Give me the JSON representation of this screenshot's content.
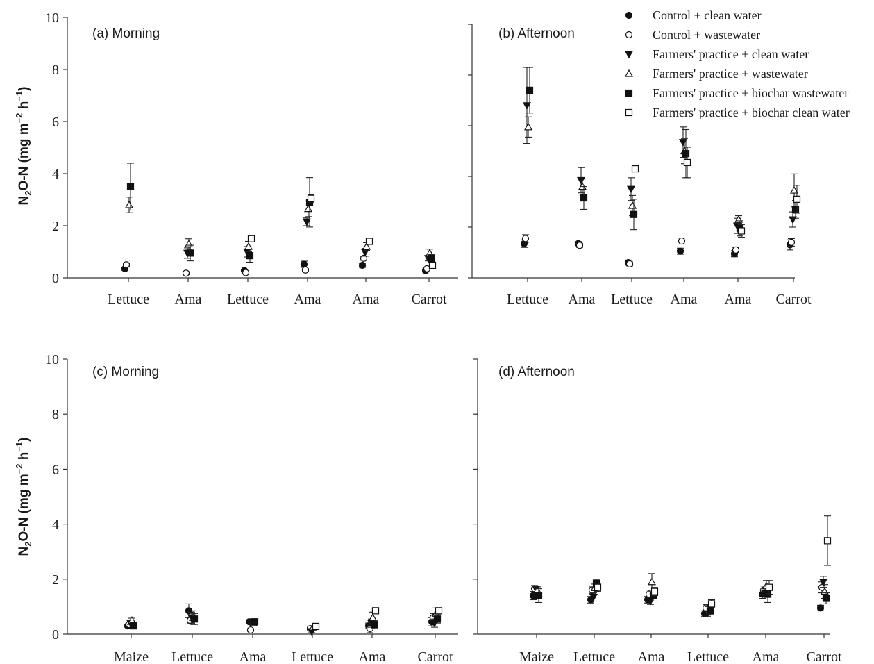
{
  "chart_data": [
    {
      "type": "scatter",
      "title": "(a) Morning",
      "categories": [
        "Lettuce",
        "Ama",
        "Lettuce",
        "Ama",
        "Ama",
        "Carrot"
      ],
      "ylabel": "N2O-N (mg m-2 h-1)",
      "ylim": [
        0,
        10
      ],
      "yticks": [
        0,
        2,
        4,
        6,
        8,
        10
      ],
      "series": [
        {
          "name": "Control + clean water",
          "values": [
            0.35,
            null,
            0.28,
            0.52,
            0.48,
            0.28
          ],
          "err": [
            0.06,
            null,
            0.05,
            0.12,
            0.08,
            0.06
          ]
        },
        {
          "name": "Control + wastewater",
          "values": [
            0.5,
            0.18,
            0.2,
            0.3,
            0.75,
            0.35
          ],
          "err": [
            0.05,
            0.06,
            0.05,
            0.05,
            0.08,
            0.06
          ]
        },
        {
          "name": "Farmers' practice + clean water",
          "values": [
            null,
            0.95,
            1.0,
            2.15,
            0.98,
            0.75
          ],
          "err": [
            null,
            0.2,
            0.2,
            0.15,
            0.15,
            0.1
          ]
        },
        {
          "name": "Farmers' practice + wastewater",
          "values": [
            2.8,
            1.3,
            1.2,
            2.65,
            1.2,
            0.95
          ],
          "err": [
            0.3,
            0.2,
            0.2,
            0.3,
            0.15,
            0.15
          ]
        },
        {
          "name": "Farmers' practice + biochar wastewater",
          "values": [
            3.5,
            0.95,
            0.85,
            2.9,
            null,
            0.75
          ],
          "err": [
            0.9,
            0.3,
            0.25,
            0.95,
            null,
            0.15
          ]
        },
        {
          "name": "Farmers' practice + biochar clean water",
          "values": [
            null,
            null,
            1.5,
            3.05,
            1.4,
            0.48
          ],
          "err": [
            null,
            null,
            0.1,
            0.15,
            0.08,
            0.08
          ]
        }
      ]
    },
    {
      "type": "scatter",
      "title": "(b) Afternoon",
      "categories": [
        "Lettuce",
        "Ama",
        "Lettuce",
        "Ama",
        "Ama",
        "Carrot"
      ],
      "ylim": [
        0,
        10
      ],
      "series": [
        {
          "name": "Control + clean water",
          "values": [
            1.35,
            1.35,
            0.6,
            1.05,
            0.95,
            1.3
          ],
          "err": [
            0.15,
            0.08,
            0.1,
            0.12,
            0.12,
            0.2
          ]
        },
        {
          "name": "Control + wastewater",
          "values": [
            1.55,
            1.28,
            0.55,
            1.45,
            1.1,
            1.4
          ],
          "err": [
            0.15,
            0.08,
            0.08,
            0.12,
            0.1,
            0.15
          ]
        },
        {
          "name": "Farmers' practice + clean water",
          "values": [
            6.8,
            3.85,
            3.5,
            5.35,
            2.05,
            2.3
          ],
          "err": [
            1.5,
            0.5,
            0.45,
            0.6,
            0.3,
            0.3
          ]
        },
        {
          "name": "Farmers' practice + wastewater",
          "values": [
            5.95,
            3.6,
            2.85,
            5.0,
            2.3,
            3.45
          ],
          "err": [
            0.4,
            0.3,
            0.4,
            0.5,
            0.15,
            0.65
          ]
        },
        {
          "name": "Farmers' practice + biochar wastewater",
          "values": [
            7.4,
            3.15,
            2.5,
            4.9,
            1.95,
            2.7
          ],
          "err": [
            0.9,
            0.45,
            0.6,
            0.95,
            0.3,
            0.35
          ]
        },
        {
          "name": "Farmers' practice + biochar clean water",
          "values": [
            null,
            null,
            4.3,
            4.55,
            1.85,
            3.1
          ],
          "err": [
            null,
            null,
            0.1,
            0.6,
            0.25,
            0.55
          ]
        }
      ]
    },
    {
      "type": "scatter",
      "title": "(c) Morning",
      "categories": [
        "Maize",
        "Lettuce",
        "Ama",
        "Lettuce",
        "Ama",
        "Carrot"
      ],
      "ylabel": "N2O-N (mg m-2 h-1)",
      "ylim": [
        0,
        10
      ],
      "yticks": [
        0,
        2,
        4,
        6,
        8,
        10
      ],
      "series": [
        {
          "name": "Control + clean water",
          "values": [
            0.3,
            0.85,
            0.45,
            null,
            0.3,
            0.45
          ],
          "err": [
            0.05,
            0.25,
            0.06,
            null,
            0.1,
            0.15
          ]
        },
        {
          "name": "Control + wastewater",
          "values": [
            0.35,
            0.5,
            0.15,
            0.2,
            0.2,
            0.6
          ],
          "err": [
            0.05,
            0.1,
            0.05,
            0.05,
            0.15,
            0.15
          ]
        },
        {
          "name": "Farmers' practice + clean water",
          "values": [
            0.4,
            0.6,
            0.45,
            0.1,
            0.4,
            0.4
          ],
          "err": [
            0.05,
            0.2,
            0.05,
            0.05,
            0.15,
            0.15
          ]
        },
        {
          "name": "Farmers' practice + wastewater",
          "values": [
            0.5,
            0.6,
            0.4,
            0.25,
            0.6,
            0.75
          ],
          "err": [
            0.08,
            0.25,
            0.06,
            0.05,
            0.2,
            0.2
          ]
        },
        {
          "name": "Farmers' practice + biochar wastewater",
          "values": [
            0.3,
            0.55,
            0.45,
            null,
            0.35,
            0.55
          ],
          "err": [
            0.06,
            0.2,
            0.06,
            null,
            0.15,
            0.15
          ]
        },
        {
          "name": "Farmers' practice + biochar clean water",
          "values": [
            null,
            null,
            null,
            0.28,
            0.85,
            0.85
          ],
          "err": [
            null,
            null,
            null,
            0.05,
            0.05,
            0.1
          ]
        }
      ]
    },
    {
      "type": "scatter",
      "title": "(d) Afternoon",
      "categories": [
        "Maize",
        "Lettuce",
        "Ama",
        "Lettuce",
        "Ama",
        "Carrot"
      ],
      "ylim": [
        0,
        10
      ],
      "series": [
        {
          "name": "Control + clean water",
          "values": [
            1.4,
            1.25,
            1.25,
            0.75,
            1.45,
            0.95
          ],
          "err": [
            0.15,
            0.12,
            0.12,
            0.1,
            0.15,
            0.1
          ]
        },
        {
          "name": "Control + wastewater",
          "values": [
            1.65,
            1.6,
            1.45,
            0.95,
            1.6,
            1.7
          ],
          "err": [
            0.12,
            0.12,
            0.15,
            0.12,
            0.15,
            0.2
          ]
        },
        {
          "name": "Farmers' practice + clean water",
          "values": [
            1.65,
            1.35,
            1.2,
            0.75,
            1.5,
            1.9
          ],
          "err": [
            0.1,
            0.15,
            0.12,
            0.1,
            0.15,
            0.2
          ]
        },
        {
          "name": "Farmers' practice + wastewater",
          "values": [
            1.6,
            1.7,
            1.9,
            0.85,
            1.75,
            1.55
          ],
          "err": [
            0.12,
            0.12,
            0.3,
            0.15,
            0.2,
            0.25
          ]
        },
        {
          "name": "Farmers' practice + biochar wastewater",
          "values": [
            1.4,
            1.85,
            1.4,
            0.85,
            1.45,
            1.3
          ],
          "err": [
            0.25,
            0.15,
            0.2,
            0.15,
            0.3,
            0.2
          ]
        },
        {
          "name": "Farmers' practice + biochar clean water",
          "values": [
            null,
            1.7,
            1.55,
            1.1,
            1.7,
            3.4
          ],
          "err": [
            null,
            0.15,
            0.15,
            0.15,
            0.25,
            0.9
          ]
        }
      ]
    }
  ],
  "legend": {
    "placement": "top-right",
    "entries": [
      {
        "label": "Control + clean water",
        "marker": "filled-circle"
      },
      {
        "label": "Control + wastewater",
        "marker": "open-circle"
      },
      {
        "label": "Farmers' practice + clean water",
        "marker": "filled-triangle-down"
      },
      {
        "label": "Farmers' practice + wastewater",
        "marker": "open-triangle-up"
      },
      {
        "label": "Farmers' practice + biochar wastewater",
        "marker": "filled-square"
      },
      {
        "label": "Farmers' practice + biochar clean water",
        "marker": "open-square"
      }
    ]
  },
  "ylabel_parts": {
    "a": "N",
    "sub": "2",
    "b": "O-N (mg m",
    "sup1": "−2",
    "c": " h",
    "sup2": "−1",
    "d": ")"
  }
}
